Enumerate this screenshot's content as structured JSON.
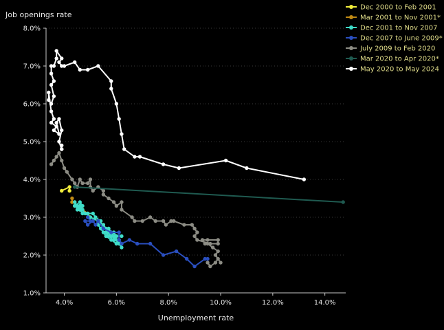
{
  "chart_data": {
    "type": "line",
    "ylabel": "Job openings rate",
    "xlabel": "Unemployment rate",
    "xlim": [
      3.3,
      14.8
    ],
    "ylim": [
      1.0,
      8.0
    ],
    "x_ticks": [
      4,
      6,
      8,
      10,
      12,
      14
    ],
    "x_tick_labels": [
      "4.0%",
      "6.0%",
      "8.0%",
      "10.0%",
      "12.0%",
      "14.0%"
    ],
    "y_ticks": [
      1,
      2,
      3,
      4,
      5,
      6,
      7,
      8
    ],
    "y_tick_labels": [
      "1.0%",
      "2.0%",
      "3.0%",
      "4.0%",
      "5.0%",
      "6.0%",
      "7.0%",
      "8.0%"
    ],
    "grid": "horizontal dotted",
    "legend_position": "top-right",
    "series": [
      {
        "name": "Dec 2000 to Feb 2001",
        "color": "#f2ee3c",
        "points": [
          [
            3.9,
            3.7
          ],
          [
            4.2,
            3.8
          ],
          [
            4.2,
            3.7
          ]
        ]
      },
      {
        "name": "Mar 2001 to Nov 2001*",
        "color": "#c08a14",
        "points": [
          [
            4.3,
            3.5
          ],
          [
            4.3,
            3.4
          ],
          [
            4.4,
            3.4
          ],
          [
            4.4,
            3.3
          ],
          [
            4.5,
            3.3
          ],
          [
            4.6,
            3.2
          ],
          [
            4.7,
            3.2
          ],
          [
            4.9,
            3.1
          ],
          [
            5.0,
            3.0
          ],
          [
            5.3,
            2.9
          ],
          [
            5.5,
            2.8
          ]
        ]
      },
      {
        "name": "Dec 2001 to Nov 2007",
        "color": "#3fdcc8",
        "points": [
          [
            5.7,
            2.7
          ],
          [
            5.8,
            2.6
          ],
          [
            5.9,
            2.6
          ],
          [
            6.0,
            2.5
          ],
          [
            5.9,
            2.4
          ],
          [
            6.1,
            2.4
          ],
          [
            6.0,
            2.3
          ],
          [
            5.8,
            2.4
          ],
          [
            5.6,
            2.5
          ],
          [
            5.5,
            2.6
          ],
          [
            5.4,
            2.7
          ],
          [
            5.3,
            2.8
          ],
          [
            5.4,
            2.9
          ],
          [
            5.2,
            3.0
          ],
          [
            5.1,
            3.1
          ],
          [
            4.9,
            3.1
          ],
          [
            4.7,
            3.1
          ],
          [
            4.6,
            3.2
          ],
          [
            4.6,
            3.3
          ],
          [
            4.5,
            3.3
          ],
          [
            4.4,
            3.3
          ],
          [
            4.6,
            3.4
          ],
          [
            4.7,
            3.3
          ],
          [
            4.6,
            3.2
          ],
          [
            4.5,
            3.3
          ],
          [
            4.4,
            3.4
          ],
          [
            4.5,
            3.2
          ],
          [
            4.6,
            3.3
          ],
          [
            4.7,
            3.2
          ],
          [
            4.8,
            3.1
          ],
          [
            5.0,
            3.0
          ],
          [
            5.3,
            2.9
          ],
          [
            5.5,
            2.8
          ],
          [
            5.6,
            2.7
          ],
          [
            5.7,
            2.7
          ],
          [
            5.8,
            2.6
          ],
          [
            5.9,
            2.5
          ],
          [
            6.0,
            2.4
          ],
          [
            6.1,
            2.4
          ],
          [
            6.2,
            2.3
          ],
          [
            6.2,
            2.2
          ],
          [
            6.1,
            2.3
          ],
          [
            6.0,
            2.4
          ],
          [
            5.8,
            2.5
          ],
          [
            5.7,
            2.6
          ],
          [
            5.6,
            2.6
          ],
          [
            5.7,
            2.5
          ],
          [
            5.9,
            2.4
          ],
          [
            6.0,
            2.5
          ],
          [
            6.2,
            2.5
          ]
        ]
      },
      {
        "name": "Dec 2007 to June 2009*",
        "color": "#2a4fc0",
        "points": [
          [
            4.9,
            3.0
          ],
          [
            5.0,
            2.9
          ],
          [
            4.8,
            2.9
          ],
          [
            4.9,
            2.8
          ],
          [
            5.1,
            2.9
          ],
          [
            5.2,
            2.8
          ],
          [
            5.3,
            2.9
          ],
          [
            5.5,
            2.7
          ],
          [
            5.8,
            2.6
          ],
          [
            6.1,
            2.6
          ],
          [
            6.1,
            2.4
          ],
          [
            6.2,
            2.3
          ],
          [
            6.5,
            2.4
          ],
          [
            6.8,
            2.3
          ],
          [
            7.3,
            2.3
          ],
          [
            7.8,
            2.0
          ],
          [
            8.3,
            2.1
          ],
          [
            8.7,
            1.9
          ],
          [
            9.0,
            1.7
          ],
          [
            9.4,
            1.9
          ],
          [
            9.5,
            1.9
          ]
        ]
      },
      {
        "name": "July 2009 to Feb 2020",
        "color": "#8c8c84",
        "points": [
          [
            9.5,
            1.8
          ],
          [
            9.6,
            1.7
          ],
          [
            9.8,
            1.8
          ],
          [
            9.9,
            1.9
          ],
          [
            10.0,
            1.8
          ],
          [
            9.8,
            2.0
          ],
          [
            9.9,
            2.1
          ],
          [
            9.7,
            2.2
          ],
          [
            9.5,
            2.3
          ],
          [
            9.4,
            2.3
          ],
          [
            9.3,
            2.4
          ],
          [
            9.5,
            2.4
          ],
          [
            9.9,
            2.4
          ],
          [
            9.9,
            2.3
          ],
          [
            9.6,
            2.3
          ],
          [
            9.1,
            2.4
          ],
          [
            9.0,
            2.5
          ],
          [
            9.1,
            2.6
          ],
          [
            9.0,
            2.7
          ],
          [
            8.9,
            2.8
          ],
          [
            8.6,
            2.8
          ],
          [
            8.2,
            2.9
          ],
          [
            8.1,
            2.9
          ],
          [
            7.9,
            2.8
          ],
          [
            7.8,
            2.9
          ],
          [
            7.5,
            2.9
          ],
          [
            7.3,
            3.0
          ],
          [
            7.0,
            2.9
          ],
          [
            6.7,
            2.9
          ],
          [
            6.6,
            3.0
          ],
          [
            6.2,
            3.2
          ],
          [
            6.2,
            3.4
          ],
          [
            6.0,
            3.3
          ],
          [
            5.9,
            3.4
          ],
          [
            5.7,
            3.5
          ],
          [
            5.5,
            3.6
          ],
          [
            5.5,
            3.7
          ],
          [
            5.3,
            3.8
          ],
          [
            5.1,
            3.7
          ],
          [
            5.0,
            3.8
          ],
          [
            5.0,
            4.0
          ],
          [
            4.9,
            3.9
          ],
          [
            4.7,
            3.9
          ],
          [
            4.6,
            4.0
          ],
          [
            4.5,
            3.8
          ],
          [
            4.4,
            3.9
          ],
          [
            4.3,
            4.0
          ],
          [
            4.1,
            4.2
          ],
          [
            4.0,
            4.3
          ],
          [
            3.9,
            4.5
          ],
          [
            3.8,
            4.7
          ],
          [
            3.7,
            4.6
          ],
          [
            3.6,
            4.5
          ],
          [
            3.5,
            4.4
          ]
        ]
      },
      {
        "name": "Mar 2020 to Apr 2020*",
        "color": "#1f5a50",
        "points": [
          [
            4.4,
            3.8
          ],
          [
            14.7,
            3.4
          ]
        ]
      },
      {
        "name": "May 2020 to May 2024",
        "color": "#ffffff",
        "points": [
          [
            13.2,
            4.0
          ],
          [
            11.0,
            4.3
          ],
          [
            10.2,
            4.5
          ],
          [
            8.4,
            4.3
          ],
          [
            7.8,
            4.4
          ],
          [
            6.9,
            4.6
          ],
          [
            6.7,
            4.6
          ],
          [
            6.3,
            4.8
          ],
          [
            6.2,
            5.2
          ],
          [
            6.1,
            5.6
          ],
          [
            6.0,
            6.0
          ],
          [
            5.8,
            6.4
          ],
          [
            5.8,
            6.6
          ],
          [
            5.3,
            7.0
          ],
          [
            4.9,
            6.9
          ],
          [
            4.6,
            6.9
          ],
          [
            4.4,
            7.1
          ],
          [
            4.0,
            7.0
          ],
          [
            3.9,
            7.0
          ],
          [
            3.8,
            7.1
          ],
          [
            3.9,
            7.2
          ],
          [
            3.7,
            7.4
          ],
          [
            3.7,
            7.2
          ],
          [
            3.6,
            7.0
          ],
          [
            3.5,
            7.0
          ],
          [
            3.5,
            6.8
          ],
          [
            3.6,
            6.6
          ],
          [
            3.5,
            6.5
          ],
          [
            3.6,
            6.2
          ],
          [
            3.5,
            6.0
          ],
          [
            3.4,
            6.1
          ],
          [
            3.4,
            6.3
          ],
          [
            3.5,
            5.8
          ],
          [
            3.6,
            5.6
          ],
          [
            3.5,
            5.5
          ],
          [
            3.7,
            5.4
          ],
          [
            3.6,
            5.3
          ],
          [
            3.8,
            5.2
          ],
          [
            3.7,
            5.5
          ],
          [
            3.8,
            5.6
          ],
          [
            3.9,
            5.3
          ],
          [
            3.8,
            5.0
          ],
          [
            3.9,
            4.8
          ],
          [
            3.9,
            4.9
          ],
          [
            3.9,
            4.8
          ]
        ]
      }
    ]
  }
}
